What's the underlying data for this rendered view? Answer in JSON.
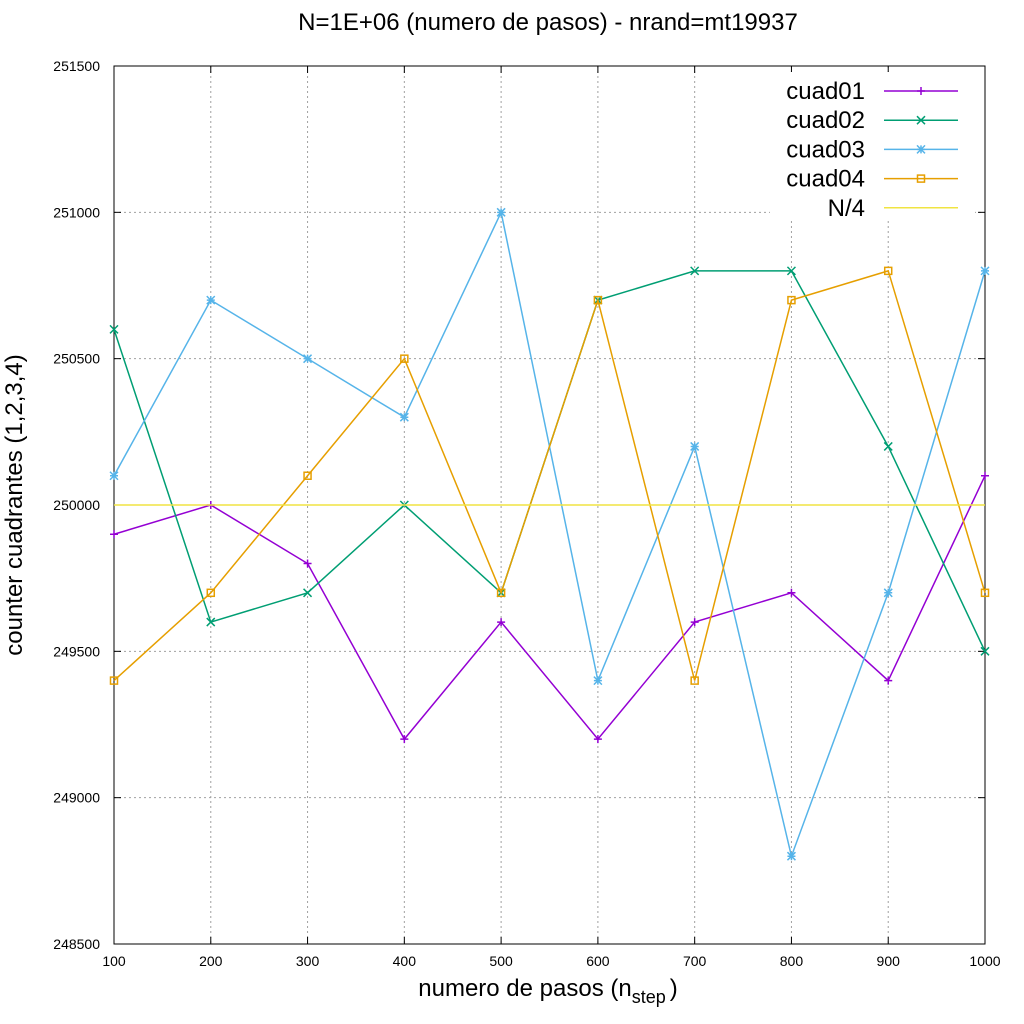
{
  "chart_data": {
    "type": "line",
    "title": "N=1E+06 (numero de pasos) - nrand=mt19937",
    "xlabel_main": "numero de pasos (n",
    "xlabel_sub": "step",
    "xlabel_close": ")",
    "ylabel": "counter cuadrantes (1,2,3,4)",
    "x": [
      100,
      200,
      300,
      400,
      500,
      600,
      700,
      800,
      900,
      1000
    ],
    "xlim": [
      100,
      1000
    ],
    "ylim": [
      248500,
      251500
    ],
    "xticks": [
      100,
      200,
      300,
      400,
      500,
      600,
      700,
      800,
      900,
      1000
    ],
    "yticks": [
      248500,
      249000,
      249500,
      250000,
      250500,
      251000,
      251500
    ],
    "grid": true,
    "legend_position": "top-right",
    "series": [
      {
        "name": "cuad01",
        "color": "#9400d3",
        "marker": "plus",
        "values": [
          249900,
          250000,
          249800,
          249200,
          249600,
          249200,
          249600,
          249700,
          249400,
          250100
        ]
      },
      {
        "name": "cuad02",
        "color": "#009e73",
        "marker": "cross",
        "values": [
          250600,
          249600,
          249700,
          250000,
          249700,
          250700,
          250800,
          250800,
          250200,
          249500
        ]
      },
      {
        "name": "cuad03",
        "color": "#56b4e9",
        "marker": "star",
        "values": [
          250100,
          250700,
          250500,
          250300,
          251000,
          249400,
          250200,
          248800,
          249700,
          250800
        ]
      },
      {
        "name": "cuad04",
        "color": "#e69f00",
        "marker": "square",
        "values": [
          249400,
          249700,
          250100,
          250500,
          249700,
          250700,
          249400,
          250700,
          250800,
          249700
        ]
      },
      {
        "name": "N/4",
        "color": "#f0e442",
        "marker": "none",
        "values": [
          250000,
          250000,
          250000,
          250000,
          250000,
          250000,
          250000,
          250000,
          250000,
          250000
        ]
      }
    ]
  }
}
